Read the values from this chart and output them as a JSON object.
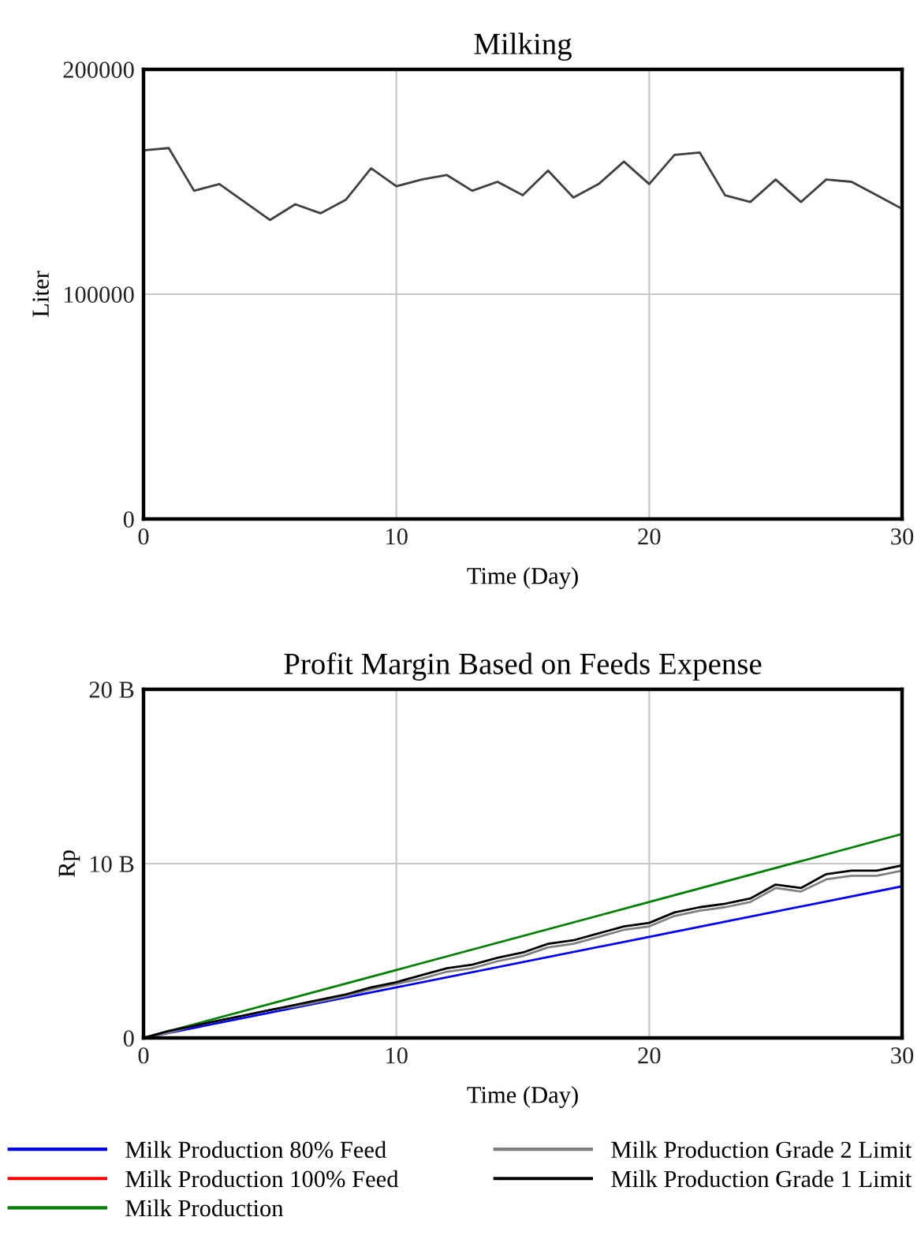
{
  "chart_data": [
    {
      "type": "line",
      "title": "Milking",
      "xlabel": "Time (Day)",
      "ylabel": "Liter",
      "xlim": [
        0,
        30
      ],
      "xticks": [
        0,
        10,
        20,
        30
      ],
      "ylim": [
        0,
        200000
      ],
      "yticks": [
        0,
        100000,
        200000
      ],
      "grid": true,
      "legend": false,
      "x": [
        0,
        1,
        2,
        3,
        4,
        5,
        6,
        7,
        8,
        9,
        10,
        11,
        12,
        13,
        14,
        15,
        16,
        17,
        18,
        19,
        20,
        21,
        22,
        23,
        24,
        25,
        26,
        27,
        28,
        29,
        30
      ],
      "series": [
        {
          "color": "#404040",
          "values": [
            164000,
            165000,
            146000,
            149000,
            141000,
            133000,
            140000,
            136000,
            142000,
            156000,
            148000,
            151000,
            153000,
            146000,
            150000,
            144000,
            155000,
            143000,
            149000,
            159000,
            149000,
            162000,
            163000,
            144000,
            141000,
            151000,
            141000,
            151000,
            150000,
            144000,
            138000
          ]
        }
      ]
    },
    {
      "type": "line",
      "title": "Profit Margin Based on Feeds Expense",
      "xlabel": "Time (Day)",
      "ylabel": "Rp",
      "xlim": [
        0,
        30
      ],
      "xticks": [
        0,
        10,
        20,
        30
      ],
      "ylim": [
        0,
        20
      ],
      "yticks": [
        0,
        {
          "value": 10,
          "label": "10 B"
        },
        {
          "value": 20,
          "label": "20 B"
        }
      ],
      "grid": true,
      "legend": "bottom",
      "x": [
        0,
        1,
        2,
        3,
        4,
        5,
        6,
        7,
        8,
        9,
        10,
        11,
        12,
        13,
        14,
        15,
        16,
        17,
        18,
        19,
        20,
        21,
        22,
        23,
        24,
        25,
        26,
        27,
        28,
        29,
        30
      ],
      "series": [
        {
          "name": "Milk Production 80% Feed",
          "color": "#0000ff",
          "x": [
            0,
            10,
            20,
            30
          ],
          "values": [
            0,
            2.9,
            5.8,
            8.7
          ]
        },
        {
          "name": "Milk Production 100% Feed",
          "color": "#ff0000",
          "values": [
            null,
            null,
            null,
            null,
            null,
            null,
            null,
            null,
            null,
            null,
            null,
            null,
            null,
            null,
            null,
            null,
            null,
            null,
            null,
            null,
            null,
            null,
            null,
            null,
            null,
            null,
            null,
            null,
            null,
            null,
            null
          ]
        },
        {
          "name": "Milk Production",
          "color": "#008000",
          "x": [
            0,
            10,
            20,
            30
          ],
          "values": [
            0,
            3.9,
            7.8,
            11.7
          ]
        },
        {
          "name": "Milk Production Grade 2 Limit",
          "color": "#808080",
          "values": [
            0,
            0.3,
            0.7,
            1.0,
            1.3,
            1.6,
            1.8,
            2.1,
            2.4,
            2.8,
            3.1,
            3.4,
            3.8,
            4.0,
            4.4,
            4.7,
            5.2,
            5.4,
            5.8,
            6.2,
            6.4,
            7.0,
            7.3,
            7.5,
            7.8,
            8.6,
            8.4,
            9.1,
            9.3,
            9.3,
            9.6
          ]
        },
        {
          "name": "Milk Production Grade 1 Limit",
          "color": "#000000",
          "values": [
            0,
            0.4,
            0.7,
            1.0,
            1.3,
            1.6,
            1.9,
            2.2,
            2.5,
            2.9,
            3.2,
            3.6,
            4.0,
            4.2,
            4.6,
            4.9,
            5.4,
            5.6,
            6.0,
            6.4,
            6.6,
            7.2,
            7.5,
            7.7,
            8.0,
            8.8,
            8.6,
            9.4,
            9.6,
            9.6,
            9.9
          ]
        }
      ]
    }
  ]
}
